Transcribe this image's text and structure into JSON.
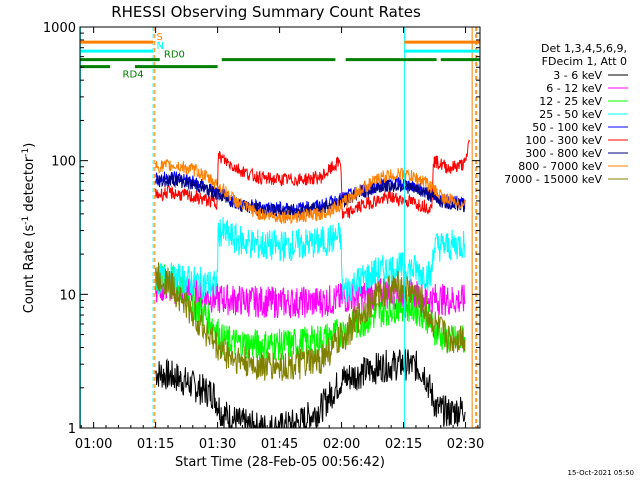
{
  "chart_data": {
    "type": "line",
    "title": "RHESSI Observing Summary Count Rates",
    "xlabel": "Start Time (28-Feb-05 00:56:42)",
    "ylabel_main": "Count Rate (s",
    "ylabel_sup1": "-1",
    "ylabel_mid": " detector",
    "ylabel_sup2": "-1",
    "ylabel_end": ")",
    "y_scale": "log",
    "ylim": [
      1,
      1000
    ],
    "xlim": [
      56.7,
      153.5
    ],
    "x_ticks": [
      {
        "value": 60,
        "label": "01:00"
      },
      {
        "value": 75,
        "label": "01:15"
      },
      {
        "value": 90,
        "label": "01:30"
      },
      {
        "value": 105,
        "label": "01:45"
      },
      {
        "value": 120,
        "label": "02:00"
      },
      {
        "value": 135,
        "label": "02:15"
      },
      {
        "value": 150,
        "label": "02:30"
      }
    ],
    "y_ticks": [
      {
        "value": 1,
        "label": "1"
      },
      {
        "value": 10,
        "label": "10"
      },
      {
        "value": 100,
        "label": "100"
      },
      {
        "value": 1000,
        "label": "1000"
      }
    ],
    "legend_header": [
      "Det 1,3,4,5,6,9,",
      "FDecim 1, Att 0"
    ],
    "series": [
      {
        "name": "3 - 6 keV",
        "color": "#000000",
        "x": [
          75,
          80,
          85,
          89,
          91,
          95,
          100,
          105,
          110,
          115,
          120,
          125,
          130,
          135,
          138,
          140,
          143,
          146,
          150
        ],
        "y": [
          2.6,
          2.4,
          2.0,
          1.8,
          1.3,
          1.1,
          1.0,
          1.0,
          1.1,
          1.4,
          2.3,
          2.6,
          2.9,
          3.0,
          2.9,
          2.6,
          1.4,
          1.3,
          1.4
        ]
      },
      {
        "name": "6 - 12 keV",
        "color": "#ff00ff",
        "x": [
          75,
          80,
          85,
          90,
          95,
          100,
          105,
          110,
          115,
          120,
          125,
          130,
          135,
          140,
          145,
          150
        ],
        "y": [
          11.5,
          11.0,
          10.0,
          9.3,
          9.0,
          8.8,
          8.7,
          8.7,
          8.8,
          9.3,
          9.8,
          10.2,
          10.0,
          9.5,
          9.1,
          9.0
        ]
      },
      {
        "name": "12 - 25 keV",
        "color": "#00ff00",
        "x": [
          75,
          80,
          85,
          89,
          91,
          95,
          100,
          105,
          110,
          115,
          120,
          125,
          130,
          135,
          140,
          143,
          146,
          150
        ],
        "y": [
          13.5,
          12.0,
          8.0,
          6.0,
          4.6,
          4.3,
          4.2,
          4.2,
          4.3,
          4.6,
          5.2,
          6.2,
          7.5,
          8.3,
          7.2,
          5.2,
          4.5,
          4.6
        ]
      },
      {
        "name": "25 - 50 keV",
        "color": "#00ffff",
        "x": [
          75,
          78,
          82,
          86,
          89.8,
          90.2,
          94,
          98,
          102,
          106,
          110,
          115,
          119.8,
          120.2,
          124,
          128,
          132,
          135,
          138,
          141,
          141.8,
          142.2,
          146,
          150
        ],
        "y": [
          13.0,
          13.2,
          12.8,
          12.2,
          11.5,
          30.0,
          26.0,
          24.0,
          23.0,
          23.0,
          23.5,
          24.5,
          27.0,
          10.5,
          12.5,
          14.5,
          15.5,
          15.8,
          15.2,
          14.0,
          13.5,
          23.0,
          23.0,
          24.0
        ]
      },
      {
        "name": "50 - 100 keV",
        "color": "#0000ff",
        "x": [
          75,
          80,
          85,
          90,
          95,
          100,
          105,
          110,
          115,
          120,
          125,
          130,
          135,
          140,
          145,
          150
        ],
        "y": [
          73,
          76,
          68,
          57,
          48,
          45,
          44,
          44,
          46,
          52,
          60,
          67,
          68,
          60,
          50,
          48
        ]
      },
      {
        "name": "100 - 300 keV",
        "color": "#ff0000",
        "x": [
          75,
          78,
          82,
          86,
          89.8,
          90.2,
          94,
          98,
          102,
          106,
          110,
          115,
          119.8,
          120.2,
          124,
          128,
          132,
          135,
          138,
          141,
          141.8,
          142.2,
          146,
          150,
          151
        ],
        "y": [
          55,
          58,
          55,
          52,
          48,
          108,
          90,
          78,
          73,
          72,
          72,
          75,
          100,
          38,
          45,
          50,
          53,
          51,
          48,
          45,
          43,
          100,
          88,
          95,
          150
        ]
      },
      {
        "name": "300 - 800 keV",
        "color": "#000080",
        "x": [
          75,
          80,
          85,
          90,
          95,
          100,
          105,
          110,
          115,
          120,
          125,
          130,
          135,
          140,
          145,
          150
        ],
        "y": [
          70,
          72,
          65,
          56,
          47,
          43,
          42,
          42,
          44,
          50,
          58,
          64,
          65,
          58,
          48,
          46
        ]
      },
      {
        "name": "800 - 7000 keV",
        "color": "#ff8000",
        "x": [
          75,
          80,
          85,
          90,
          95,
          100,
          105,
          110,
          115,
          120,
          125,
          130,
          135,
          140,
          145,
          150
        ],
        "y": [
          90,
          92,
          84,
          66,
          48,
          40,
          38,
          38,
          40,
          47,
          62,
          76,
          80,
          70,
          52,
          47
        ]
      },
      {
        "name": "7000 - 15000 keV",
        "color": "#808000",
        "x": [
          75,
          78,
          82,
          86,
          90,
          94,
          98,
          102,
          106,
          110,
          114,
          118,
          122,
          126,
          130,
          134,
          138,
          142,
          146,
          150
        ],
        "y": [
          13.5,
          12.5,
          8.5,
          6.0,
          4.0,
          3.3,
          3.0,
          2.9,
          2.9,
          3.0,
          3.1,
          4.0,
          5.5,
          8.0,
          10.5,
          11.5,
          10.0,
          6.2,
          4.6,
          4.8
        ]
      }
    ],
    "vertical_markers": [
      {
        "x": 56.8,
        "color": "#00ffff",
        "style": "solid"
      },
      {
        "x": 74.4,
        "color": "#00ffff",
        "style": "dashed"
      },
      {
        "x": 74.8,
        "color": "#ff8000",
        "style": "dashed"
      },
      {
        "x": 135.2,
        "color": "#00ffff",
        "style": "solid"
      },
      {
        "x": 151.6,
        "color": "#ff8000",
        "style": "solid"
      },
      {
        "x": 152.4,
        "color": "#00ffff",
        "style": "dashed"
      },
      {
        "x": 152.7,
        "color": "#ff8000",
        "style": "dashed"
      }
    ],
    "flag_bars": [
      {
        "label": "S",
        "color": "#ff8000",
        "level": 770,
        "label_x": 75.2,
        "segments": [
          [
            56.7,
            74.4
          ],
          [
            135.2,
            153.5
          ]
        ]
      },
      {
        "label": "N",
        "color": "#00ffff",
        "level": 660,
        "label_x": 75.2,
        "segments": [
          [
            56.7,
            74.4
          ],
          [
            135.2,
            153.5
          ]
        ]
      },
      {
        "label": "RD0",
        "color": "#008000",
        "level": 570,
        "label_x": 77.0,
        "segments": [
          [
            56.7,
            76.0
          ],
          [
            91.0,
            118.5
          ],
          [
            121.0,
            143.0
          ],
          [
            144.0,
            153.5
          ]
        ]
      },
      {
        "label": "RD4",
        "color": "#008000",
        "level": 505,
        "label_x": 67.0,
        "segments": [
          [
            56.7,
            64.0
          ],
          [
            70.0,
            90.0
          ]
        ]
      }
    ]
  },
  "footer_timestamp": "15-Oct-2021 05:50"
}
